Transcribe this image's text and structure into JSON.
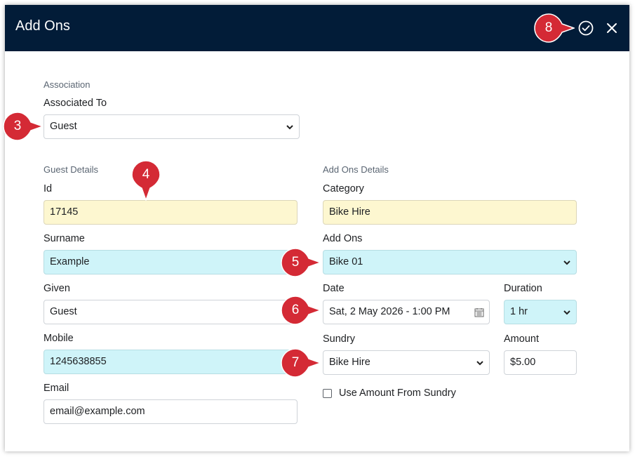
{
  "dialog": {
    "title": "Add Ons",
    "confirm_icon": "check-circle-icon",
    "close_icon": "close-icon"
  },
  "association": {
    "section_title": "Association",
    "associated_to_label": "Associated To",
    "associated_to_value": "Guest"
  },
  "guest_details": {
    "section_title": "Guest Details",
    "id_label": "Id",
    "id_value": "17145",
    "surname_label": "Surname",
    "surname_value": "Example",
    "given_label": "Given",
    "given_value": "Guest",
    "mobile_label": "Mobile",
    "mobile_value": "1245638855",
    "email_label": "Email",
    "email_value": "email@example.com"
  },
  "addon_details": {
    "section_title": "Add Ons Details",
    "category_label": "Category",
    "category_value": "Bike Hire",
    "addons_label": "Add Ons",
    "addons_value": "Bike 01",
    "date_label": "Date",
    "date_value": "Sat, 2 May 2026 - 1:00 PM",
    "duration_label": "Duration",
    "duration_value": "1 hr",
    "sundry_label": "Sundry",
    "sundry_value": "Bike Hire",
    "amount_label": "Amount",
    "amount_value": "$5.00",
    "use_amount_label": "Use Amount From Sundry",
    "use_amount_checked": false
  },
  "callouts": {
    "c3": "3",
    "c4": "4",
    "c5": "5",
    "c6": "6",
    "c7": "7",
    "c8": "8"
  },
  "colors": {
    "header_bg": "#021c38",
    "callout_red": "#d42a35",
    "highlight_yellow": "#fdf7d0",
    "highlight_cyan": "#cff4f9"
  }
}
